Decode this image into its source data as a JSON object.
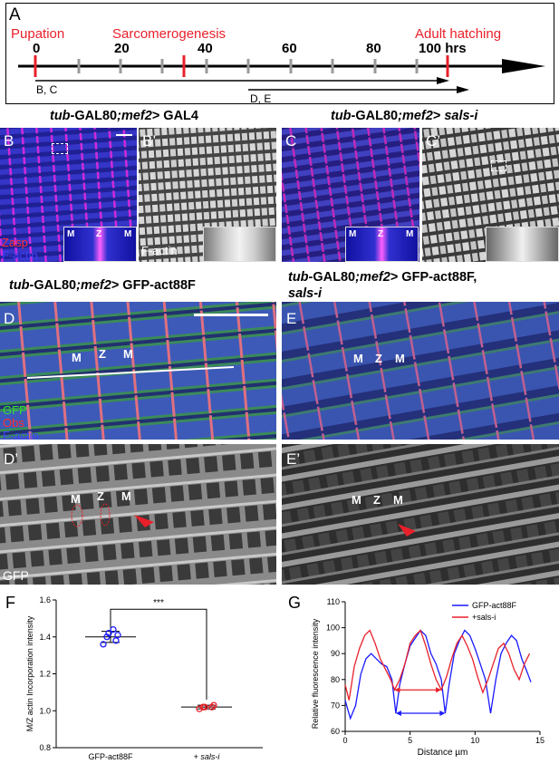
{
  "timeline": {
    "label": "A",
    "events": {
      "pupation": "Pupation",
      "sarcomerogenesis": "Sarcomerogenesis",
      "adult_hatching": "Adult hatching"
    },
    "ticks": [
      "0",
      "20",
      "40",
      "60",
      "80",
      "100 hrs"
    ],
    "range1": "B, C",
    "range2": "D, E"
  },
  "panel_b": {
    "label": "B",
    "label_prime": "B’",
    "title_prefix": "tub",
    "title_rest": "-GAL80",
    "title_mid": ";mef2",
    "title_end": "> GAL4",
    "ch1": "Zasp",
    "ch2": "F-actin",
    "ch_prime": "F-actin"
  },
  "panel_c": {
    "label": "C",
    "label_prime": "C’",
    "title_prefix": "tub",
    "title_rest": "-GAL80",
    "title_mid": ";mef2",
    "title_end": "> ",
    "title_italic_end": "sals-i"
  },
  "panel_d": {
    "label": "D",
    "label_prime": "D’",
    "title_prefix": "tub",
    "title_rest": "-GAL80",
    "title_mid": ";mef2",
    "title_end": "> GFP-act88F",
    "ch1": "GFP",
    "ch2": "Obs",
    "ch3": "F-actin",
    "ch_prime": "GFP"
  },
  "panel_e": {
    "label": "E",
    "label_prime": "E’",
    "title_prefix": "tub",
    "title_rest": "-GAL80",
    "title_mid": ";mef2",
    "title_end": "> GFP-act88F,",
    "title_line2": "sals-i"
  },
  "mz_labels": {
    "m": "M",
    "z": "Z"
  },
  "panel_f": {
    "label": "F",
    "chart_data": {
      "type": "scatter",
      "ylabel": "M/Z actin Incorporation intensity",
      "categories": [
        "GFP-act88F",
        "+ sals-i"
      ],
      "category_italic_part": "sals-i",
      "ylim": [
        0.8,
        1.6
      ],
      "yticks": [
        "0.8",
        "1.0",
        "1.2",
        "1.4",
        "1.6"
      ],
      "series": [
        {
          "values": [
            1.36,
            1.38,
            1.4,
            1.41,
            1.42,
            1.44
          ],
          "mean": 1.4,
          "sd": 0.03,
          "color": "#1a1aff"
        },
        {
          "values": [
            1.01,
            1.02,
            1.02,
            1.03,
            1.02
          ],
          "mean": 1.02,
          "sd": 0.01,
          "color": "#e8202a"
        }
      ],
      "significance": "***"
    }
  },
  "panel_g": {
    "label": "G",
    "chart_data": {
      "type": "line",
      "xlabel": "Distance µm",
      "ylabel": "Relative fluorescence intensity",
      "xlim": [
        0,
        15
      ],
      "ylim": [
        60,
        110
      ],
      "xticks": [
        "0",
        "5",
        "10",
        "15"
      ],
      "yticks": [
        "60",
        "70",
        "80",
        "90",
        "100",
        "110"
      ],
      "series": [
        {
          "name": "GFP-act88F",
          "color": "#1a1aff",
          "x": [
            0,
            0.4,
            0.8,
            1.2,
            1.6,
            2.0,
            2.4,
            2.8,
            3.2,
            3.6,
            3.9,
            4.2,
            4.6,
            5.0,
            5.4,
            5.8,
            6.2,
            6.6,
            7.0,
            7.4,
            7.7,
            8.0,
            8.4,
            8.8,
            9.2,
            9.6,
            10.0,
            10.4,
            10.8,
            11.2,
            11.6,
            12.0,
            12.4,
            12.8,
            13.2,
            13.6,
            14.0,
            14.3
          ],
          "y": [
            72,
            65,
            70,
            82,
            88,
            90,
            88,
            86,
            85,
            80,
            67,
            78,
            86,
            93,
            96,
            99,
            97,
            90,
            86,
            80,
            67,
            78,
            90,
            95,
            99,
            97,
            92,
            86,
            80,
            67,
            80,
            90,
            94,
            97,
            95,
            88,
            83,
            79
          ]
        },
        {
          "name": "+sals-i",
          "color": "#e8202a",
          "x": [
            0,
            0.3,
            0.7,
            1.1,
            1.5,
            1.9,
            2.3,
            2.7,
            3.1,
            3.5,
            3.8,
            4.2,
            4.6,
            5.0,
            5.4,
            5.8,
            6.2,
            6.6,
            7.0,
            7.4,
            7.8,
            8.2,
            8.6,
            9.0,
            9.4,
            9.8,
            10.2,
            10.6,
            11.0,
            11.4,
            11.8,
            12.2,
            12.6,
            13.0,
            13.4,
            13.8,
            14.2
          ],
          "y": [
            78,
            72,
            85,
            92,
            97,
            99,
            94,
            88,
            84,
            80,
            76,
            80,
            86,
            94,
            97,
            99,
            93,
            86,
            80,
            76,
            81,
            88,
            94,
            97,
            93,
            88,
            81,
            75,
            80,
            86,
            92,
            94,
            90,
            84,
            80,
            86,
            90
          ]
        }
      ],
      "legend_position": "top-right"
    }
  }
}
